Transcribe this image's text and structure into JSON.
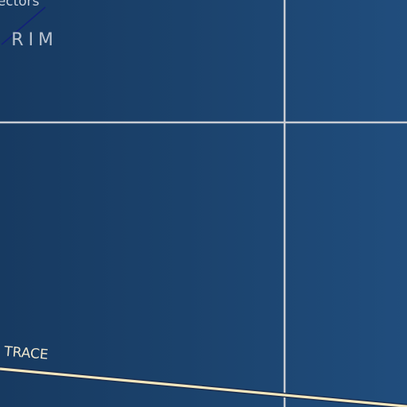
{
  "labels": {
    "sectors": "Sectors",
    "rim": "R RIM",
    "trace": "HTS' TRACE"
  },
  "colors": {
    "background_left": "#173a61",
    "background_right": "#204d7d",
    "grid_line": "#c8ccd3",
    "trace_line": "#f3e7bf",
    "trace_outline": "#1a2a4a",
    "diagonal_line": "#12207a"
  }
}
